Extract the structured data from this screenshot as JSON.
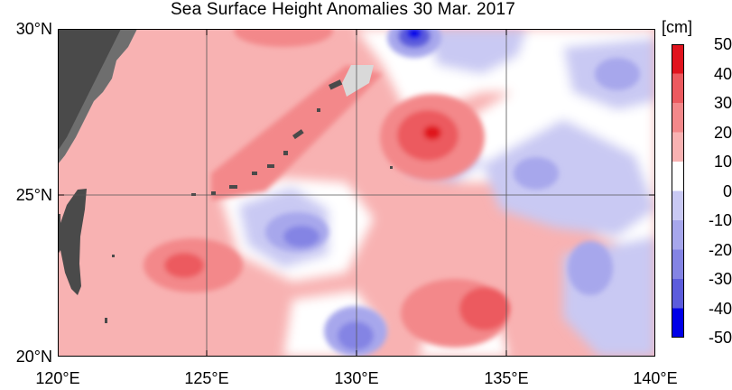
{
  "header": {
    "title": "Sea Surface Height Anomalies  30 Mar. 2017"
  },
  "map": {
    "y_ticks": [
      {
        "label": "30°N",
        "lat": 30
      },
      {
        "label": "25°N",
        "lat": 25
      },
      {
        "label": "20°N",
        "lat": 20
      }
    ],
    "x_ticks": [
      {
        "label": "120°E",
        "lon": 120
      },
      {
        "label": "125°E",
        "lon": 125
      },
      {
        "label": "130°E",
        "lon": 130
      },
      {
        "label": "135°E",
        "lon": 135
      },
      {
        "label": "140°E",
        "lon": 140
      }
    ],
    "land_color": "#d9d9d9",
    "coast_color": "#3c3c3c"
  },
  "colorbar": {
    "unit": "[cm]",
    "labels": [
      "50",
      "40",
      "30",
      "20",
      "10",
      "0",
      "-10",
      "-20",
      "-30",
      "-40",
      "-50"
    ],
    "colors": [
      "#e0141e",
      "#ec5a5f",
      "#f3888a",
      "#f8b2b2",
      "#ffffff",
      "#c9c9f3",
      "#a7a7ec",
      "#8484e4",
      "#5c5cdc",
      "#0000e8"
    ]
  }
}
